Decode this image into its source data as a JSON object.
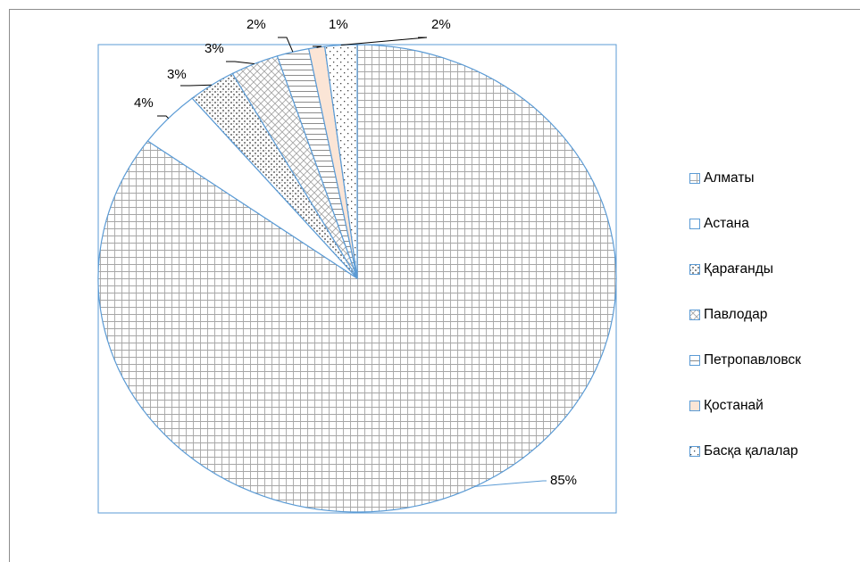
{
  "chart_data": {
    "type": "pie",
    "title": "",
    "categories": [
      "Алматы",
      "Астана",
      "Қарағанды",
      "Павлодар",
      "Петропавловск",
      "Қостанай",
      "Басқа қалалар"
    ],
    "values": [
      85,
      4,
      3,
      3,
      2,
      1,
      2
    ],
    "labels": [
      "85%",
      "4%",
      "3%",
      "3%",
      "2%",
      "1%",
      "2%"
    ],
    "legend_position": "right",
    "colors": {
      "outline": "#5b9bd5",
      "pattern": "#a6a6a6",
      "fill": "#ffffff",
      "kostanay_fill": "#fbe5d6",
      "leader": "#000000"
    },
    "patterns": [
      "small-grid",
      "none",
      "dotted-grid",
      "diagonal-cross",
      "horizontal",
      "solid",
      "dots"
    ]
  }
}
